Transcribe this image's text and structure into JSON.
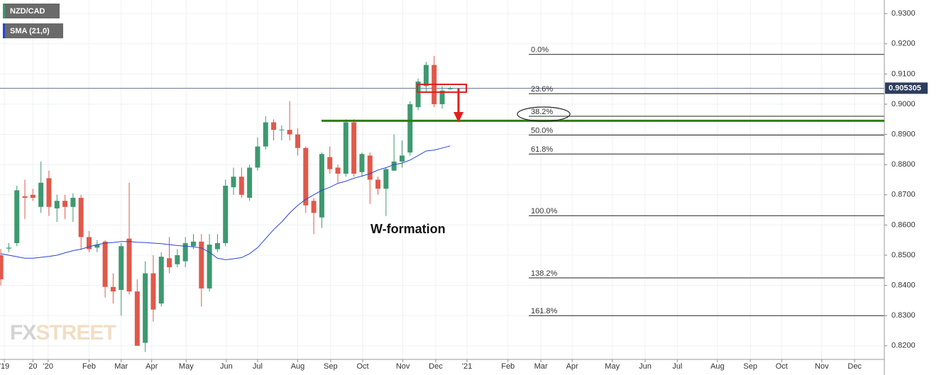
{
  "chart_data": {
    "type": "candlestick",
    "series": [
      {
        "name": "NZD/CAD",
        "up_color": "#3d9970",
        "down_color": "#e0594a",
        "open": [
          0.85,
          0.8522,
          0.854,
          0.8695,
          0.87,
          0.866,
          0.8755,
          0.8655,
          0.868,
          0.866,
          0.869,
          0.856,
          0.8525,
          0.8545,
          0.8395,
          0.8385,
          0.8555,
          0.838,
          0.821,
          0.844,
          0.834,
          0.849,
          0.847,
          0.848,
          0.853,
          0.8545,
          0.839,
          0.852,
          0.854,
          0.8725,
          0.876,
          0.869,
          0.879,
          0.886,
          0.894,
          0.8915,
          0.8915,
          0.89,
          0.8855,
          0.868,
          0.8625,
          0.8825,
          0.879,
          0.877,
          0.894,
          0.8775,
          0.883,
          0.875,
          0.872,
          0.878,
          0.881,
          0.884,
          0.899,
          0.906,
          0.913,
          0.9,
          0.905
        ],
        "high": [
          0.852,
          0.854,
          0.873,
          0.875,
          0.872,
          0.881,
          0.878,
          0.87,
          0.87,
          0.8705,
          0.87,
          0.858,
          0.855,
          0.855,
          0.844,
          0.854,
          0.874,
          0.842,
          0.848,
          0.85,
          0.851,
          0.856,
          0.852,
          0.856,
          0.857,
          0.857,
          0.857,
          0.857,
          0.875,
          0.879,
          0.879,
          0.88,
          0.889,
          0.896,
          0.895,
          0.893,
          0.901,
          0.892,
          0.886,
          0.869,
          0.884,
          0.886,
          0.88,
          0.895,
          0.895,
          0.884,
          0.884,
          0.876,
          0.879,
          0.89,
          0.888,
          0.901,
          0.9085,
          0.914,
          0.916,
          0.906,
          0.9058
        ],
        "low": [
          0.84,
          0.851,
          0.853,
          0.862,
          0.868,
          0.864,
          0.863,
          0.861,
          0.862,
          0.861,
          0.852,
          0.851,
          0.851,
          0.836,
          0.834,
          0.83,
          0.837,
          0.82,
          0.818,
          0.828,
          0.833,
          0.844,
          0.846,
          0.846,
          0.852,
          0.833,
          0.838,
          0.851,
          0.853,
          0.87,
          0.869,
          0.868,
          0.878,
          0.885,
          0.888,
          0.888,
          0.888,
          0.883,
          0.864,
          0.857,
          0.859,
          0.877,
          0.874,
          0.876,
          0.876,
          0.876,
          0.867,
          0.87,
          0.863,
          0.878,
          0.879,
          0.883,
          0.898,
          0.904,
          0.899,
          0.8985,
          0.9048
        ],
        "close": [
          0.842,
          0.8525,
          0.8715,
          0.869,
          0.869,
          0.874,
          0.866,
          0.868,
          0.866,
          0.869,
          0.856,
          0.852,
          0.8535,
          0.8395,
          0.838,
          0.853,
          0.838,
          0.82,
          0.844,
          0.832,
          0.8495,
          0.846,
          0.85,
          0.854,
          0.8545,
          0.839,
          0.8535,
          0.854,
          0.873,
          0.876,
          0.87,
          0.879,
          0.886,
          0.894,
          0.8915,
          0.8916,
          0.89,
          0.8855,
          0.8665,
          0.864,
          0.8835,
          0.8785,
          0.877,
          0.894,
          0.877,
          0.8835,
          0.875,
          0.872,
          0.8785,
          0.881,
          0.883,
          0.9,
          0.9075,
          0.913,
          0.9,
          0.9045,
          0.9053
        ]
      },
      {
        "name": "SMA (21,0)",
        "color": "#2745d6",
        "values": [
          0.8505,
          0.85,
          0.8495,
          0.849,
          0.849,
          0.8493,
          0.8496,
          0.85,
          0.8508,
          0.8515,
          0.852,
          0.8528,
          0.8535,
          0.854,
          0.8542,
          0.8545,
          0.8545,
          0.8543,
          0.8542,
          0.854,
          0.8538,
          0.8535,
          0.8532,
          0.853,
          0.8528,
          0.8524,
          0.851,
          0.849,
          0.8485,
          0.8488,
          0.8492,
          0.8505,
          0.8525,
          0.8555,
          0.8585,
          0.861,
          0.864,
          0.8665,
          0.8685,
          0.87,
          0.8715,
          0.8725,
          0.8738,
          0.8745,
          0.8755,
          0.8762,
          0.877,
          0.8782,
          0.879,
          0.88,
          0.8805,
          0.8815,
          0.883,
          0.8845,
          0.8848,
          0.8855,
          0.8862
        ]
      }
    ],
    "last_price": 0.905305,
    "support_level": 0.8945,
    "annotation": "W-formation",
    "fib_levels": [
      {
        "label": "0.0%",
        "value": 0.9165
      },
      {
        "label": "23.6%",
        "value": 0.9035
      },
      {
        "label": "38.2%",
        "value": 0.896
      },
      {
        "label": "50.0%",
        "value": 0.8898
      },
      {
        "label": "61.8%",
        "value": 0.8835
      },
      {
        "label": "100.0%",
        "value": 0.8631
      },
      {
        "label": "138.2%",
        "value": 0.8425
      },
      {
        "label": "161.8%",
        "value": 0.83
      }
    ],
    "ylim": [
      0.8155,
      0.9345
    ],
    "yticks": [
      {
        "value": 0.93,
        "label": "0.9300"
      },
      {
        "value": 0.92,
        "label": "0.9200"
      },
      {
        "value": 0.91,
        "label": "0.9100"
      },
      {
        "value": 0.9,
        "label": "0.9000"
      },
      {
        "value": 0.89,
        "label": "0.8900"
      },
      {
        "value": 0.88,
        "label": "0.8800"
      },
      {
        "value": 0.87,
        "label": "0.8700"
      },
      {
        "value": 0.86,
        "label": "0.8600"
      },
      {
        "value": 0.85,
        "label": "0.8500"
      },
      {
        "value": 0.84,
        "label": "0.8400"
      },
      {
        "value": 0.83,
        "label": "0.8300"
      },
      {
        "value": 0.82,
        "label": "0.8200"
      }
    ],
    "xlim": [
      -0.1,
      110.1
    ],
    "xticks": [
      {
        "value": 0.44,
        "label": "'19"
      },
      {
        "value": 4.0,
        "label": "20"
      },
      {
        "value": 5.9,
        "label": "'20"
      },
      {
        "value": 11.0,
        "label": "Feb"
      },
      {
        "value": 15.0,
        "label": "Mar"
      },
      {
        "value": 18.8,
        "label": "Apr"
      },
      {
        "value": 23.1,
        "label": "May"
      },
      {
        "value": 28.1,
        "label": "Jun"
      },
      {
        "value": 32.0,
        "label": "Jul"
      },
      {
        "value": 37.0,
        "label": "Aug"
      },
      {
        "value": 41.1,
        "label": "Sep"
      },
      {
        "value": 45.1,
        "label": "Oct"
      },
      {
        "value": 50.1,
        "label": "Nov"
      },
      {
        "value": 54.2,
        "label": "Dec"
      },
      {
        "value": 58.1,
        "label": "'21"
      },
      {
        "value": 63.2,
        "label": "Feb"
      },
      {
        "value": 67.3,
        "label": "Mar"
      },
      {
        "value": 71.2,
        "label": "Apr"
      },
      {
        "value": 76.2,
        "label": "May"
      },
      {
        "value": 80.3,
        "label": "Jun"
      },
      {
        "value": 84.3,
        "label": "Jul"
      },
      {
        "value": 89.3,
        "label": "Aug"
      },
      {
        "value": 93.4,
        "label": "Sep"
      },
      {
        "value": 97.3,
        "label": "Oct"
      },
      {
        "value": 102.3,
        "label": "Nov"
      },
      {
        "value": 106.4,
        "label": "Dec"
      }
    ],
    "grid": true
  }
}
